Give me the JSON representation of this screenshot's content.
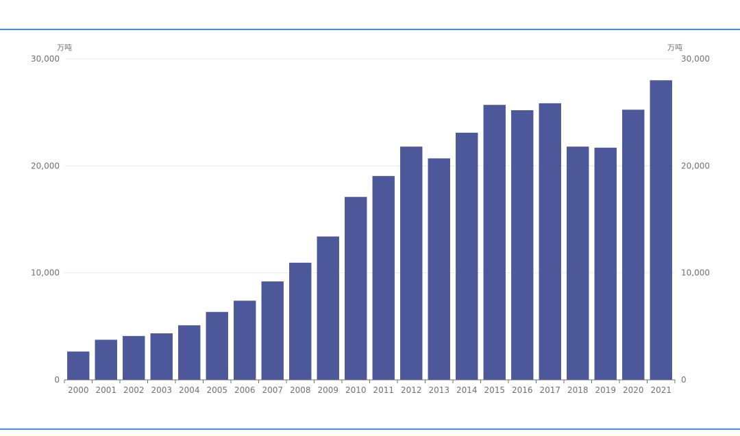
{
  "chart_data": {
    "type": "bar",
    "categories": [
      "2000",
      "2001",
      "2002",
      "2003",
      "2004",
      "2005",
      "2006",
      "2007",
      "2008",
      "2009",
      "2010",
      "2011",
      "2012",
      "2013",
      "2014",
      "2015",
      "2016",
      "2017",
      "2018",
      "2019",
      "2020",
      "2021"
    ],
    "series": [
      {
        "values": [
          2650,
          3750,
          4100,
          4350,
          5100,
          6350,
          7400,
          9200,
          10950,
          13400,
          17100,
          19050,
          21800,
          20700,
          23100,
          25700,
          25200,
          25850,
          21800,
          21700,
          25250,
          28000
        ]
      }
    ],
    "ylim": [
      0,
      30000
    ],
    "yticks": [
      0,
      10000,
      20000,
      30000
    ],
    "ytick_labels": [
      "0",
      "10,000",
      "20,000",
      "30,000"
    ],
    "y_unit_left": "万吨",
    "y_unit_right": "万吨",
    "bar_color": "#4c5899",
    "grid": true
  }
}
